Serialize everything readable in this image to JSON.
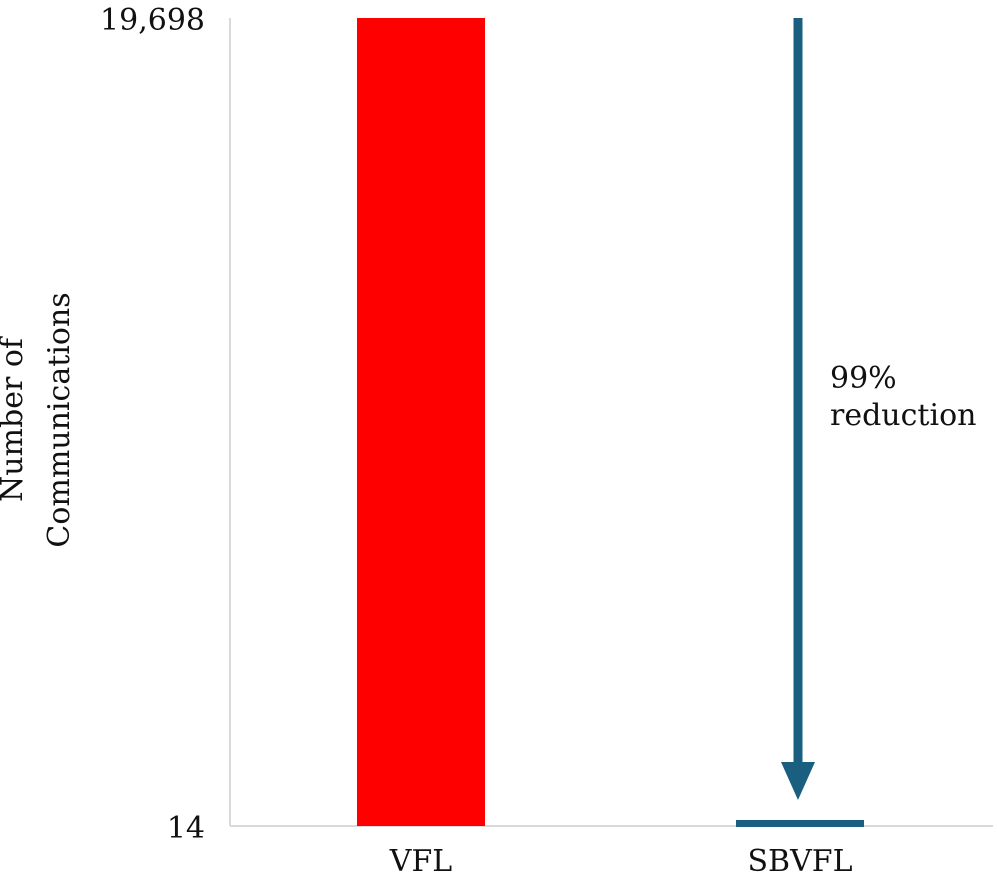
{
  "chart_data": {
    "type": "bar",
    "categories": [
      "VFL",
      "SBVFL"
    ],
    "values": [
      19698,
      14
    ],
    "ylabel_lines": [
      "Number of",
      "Communications"
    ],
    "yticks": [
      "19,698",
      "14"
    ],
    "ylim": [
      14,
      19698
    ],
    "grid": false,
    "colors": {
      "VFL": "#ff0000",
      "SBVFL": "#1a5f80",
      "arrow": "#1a5f80",
      "axis": "#d9d9d9"
    },
    "annotation": {
      "lines": [
        "99%",
        "reduction"
      ],
      "arrow_from": 19698,
      "arrow_to": 14
    }
  }
}
